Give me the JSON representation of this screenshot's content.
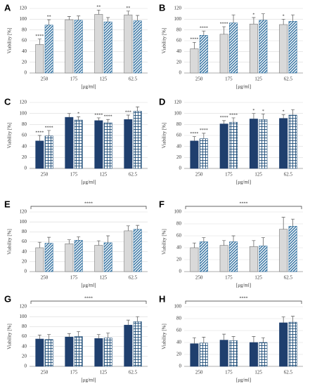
{
  "chart_data": [
    {
      "type": "bar",
      "title": "A",
      "ylabel": "Viability [%]",
      "xlabel": "[μg/ml]",
      "categories": [
        "250",
        "175",
        "125",
        "62.5"
      ],
      "ylim": [
        0,
        120
      ],
      "yticks": [
        0,
        20,
        40,
        60,
        80,
        100,
        120
      ],
      "grid": true,
      "series": [
        {
          "color": "#d9d9d9",
          "pattern": "solid",
          "values": [
            53,
            99,
            109,
            108
          ],
          "errors": [
            10,
            6,
            8,
            7
          ],
          "labels": [
            "****",
            null,
            "**",
            "**"
          ]
        },
        {
          "color": "#2f6f9f",
          "pattern": "hatch",
          "values": [
            89,
            98,
            95,
            97
          ],
          "errors": [
            10,
            8,
            8,
            10
          ],
          "labels": [
            "**",
            null,
            null,
            null
          ]
        }
      ]
    },
    {
      "type": "bar",
      "title": "B",
      "ylabel": "Viability [%]",
      "xlabel": "[μg/ml]",
      "categories": [
        "250",
        "175",
        "125",
        "62.5"
      ],
      "ylim": [
        0,
        120
      ],
      "yticks": [
        0,
        20,
        40,
        60,
        80,
        100,
        120
      ],
      "grid": true,
      "series": [
        {
          "color": "#d9d9d9",
          "pattern": "solid",
          "values": [
            45,
            72,
            91,
            90
          ],
          "errors": [
            12,
            14,
            12,
            10
          ],
          "labels": [
            "****",
            "****",
            "*",
            "*"
          ]
        },
        {
          "color": "#2f6f9f",
          "pattern": "hatch",
          "values": [
            70,
            93,
            98,
            96
          ],
          "errors": [
            8,
            15,
            12,
            12
          ],
          "labels": [
            "****",
            null,
            null,
            null
          ]
        }
      ]
    },
    {
      "type": "bar",
      "title": "C",
      "ylabel": "Viability [%]",
      "xlabel": "[μg/ml]",
      "categories": [
        "250",
        "175",
        "125",
        "62.5"
      ],
      "ylim": [
        0,
        120
      ],
      "yticks": [
        0,
        20,
        40,
        60,
        80,
        100,
        120
      ],
      "grid": true,
      "series": [
        {
          "color": "#1f3f6e",
          "pattern": "solid",
          "values": [
            50,
            93,
            87,
            89
          ],
          "errors": [
            10,
            7,
            5,
            8
          ],
          "labels": [
            "****",
            null,
            "****",
            "***"
          ]
        },
        {
          "color": "#1f4e79",
          "pattern": "grid",
          "values": [
            59,
            88,
            83,
            104
          ],
          "errors": [
            10,
            6,
            6,
            8
          ],
          "labels": [
            "****",
            "*",
            "****",
            null
          ]
        }
      ]
    },
    {
      "type": "bar",
      "title": "D",
      "ylabel": "Viability [%]",
      "xlabel": "[μg/ml]",
      "categories": [
        "250",
        "175",
        "125",
        "62.5"
      ],
      "ylim": [
        0,
        120
      ],
      "yticks": [
        0,
        20,
        40,
        60,
        80,
        100,
        120
      ],
      "grid": true,
      "series": [
        {
          "color": "#1f3f6e",
          "pattern": "solid",
          "values": [
            50,
            81,
            90,
            91
          ],
          "errors": [
            8,
            6,
            10,
            7
          ],
          "labels": [
            "****",
            "****",
            "*",
            "*"
          ]
        },
        {
          "color": "#1f4e79",
          "pattern": "grid",
          "values": [
            54,
            84,
            89,
            97
          ],
          "errors": [
            10,
            8,
            10,
            10
          ],
          "labels": [
            "****",
            "****",
            "*",
            null
          ]
        }
      ]
    },
    {
      "type": "bar",
      "title": "E",
      "ylabel": "Viability [%]",
      "xlabel": "[μg/ml]",
      "categories": [
        "250",
        "175",
        "125",
        "62.5"
      ],
      "ylim": [
        0,
        120
      ],
      "yticks": [
        0,
        20,
        40,
        60,
        80,
        100,
        120
      ],
      "grid": true,
      "bracket_label": "****",
      "series": [
        {
          "color": "#d9d9d9",
          "pattern": "solid",
          "values": [
            48,
            56,
            53,
            82
          ],
          "errors": [
            11,
            8,
            9,
            10
          ]
        },
        {
          "color": "#2f6f9f",
          "pattern": "hatch",
          "values": [
            57,
            63,
            58,
            85
          ],
          "errors": [
            12,
            7,
            14,
            8
          ]
        }
      ]
    },
    {
      "type": "bar",
      "title": "F",
      "ylabel": "Viability [%]",
      "xlabel": "[μg/ml]",
      "categories": [
        "250",
        "175",
        "125",
        "62.5"
      ],
      "ylim": [
        0,
        100
      ],
      "yticks": [
        0,
        20,
        40,
        60,
        80,
        100
      ],
      "grid": true,
      "bracket_label": "****",
      "series": [
        {
          "color": "#d9d9d9",
          "pattern": "solid",
          "values": [
            40,
            44,
            42,
            71
          ],
          "errors": [
            8,
            8,
            10,
            20
          ]
        },
        {
          "color": "#2f6f9f",
          "pattern": "hatch",
          "values": [
            50,
            50,
            43,
            76
          ],
          "errors": [
            7,
            10,
            14,
            12
          ]
        }
      ]
    },
    {
      "type": "bar",
      "title": "G",
      "ylabel": "Viability [%]",
      "xlabel": "[μg/ml]",
      "categories": [
        "250",
        "175",
        "125",
        "62.5"
      ],
      "ylim": [
        0,
        120
      ],
      "yticks": [
        0,
        20,
        40,
        60,
        80,
        100,
        120
      ],
      "grid": true,
      "bracket_label": "****",
      "series": [
        {
          "color": "#1f3f6e",
          "pattern": "solid",
          "values": [
            55,
            59,
            56,
            83
          ],
          "errors": [
            8,
            7,
            8,
            10
          ]
        },
        {
          "color": "#1f4e79",
          "pattern": "grid",
          "values": [
            54,
            60,
            57,
            90
          ],
          "errors": [
            10,
            10,
            10,
            10
          ]
        }
      ]
    },
    {
      "type": "bar",
      "title": "H",
      "ylabel": "Viability [%]",
      "xlabel": "[μg/ml]",
      "categories": [
        "250",
        "175",
        "125",
        "62.5"
      ],
      "ylim": [
        0,
        100
      ],
      "yticks": [
        0,
        20,
        40,
        60,
        80,
        100
      ],
      "grid": true,
      "bracket_label": "****",
      "series": [
        {
          "color": "#1f3f6e",
          "pattern": "solid",
          "values": [
            38,
            44,
            40,
            73
          ],
          "errors": [
            10,
            10,
            10,
            10
          ]
        },
        {
          "color": "#1f4e79",
          "pattern": "grid",
          "values": [
            39,
            43,
            40,
            74
          ],
          "errors": [
            10,
            7,
            8,
            10
          ]
        }
      ]
    }
  ]
}
